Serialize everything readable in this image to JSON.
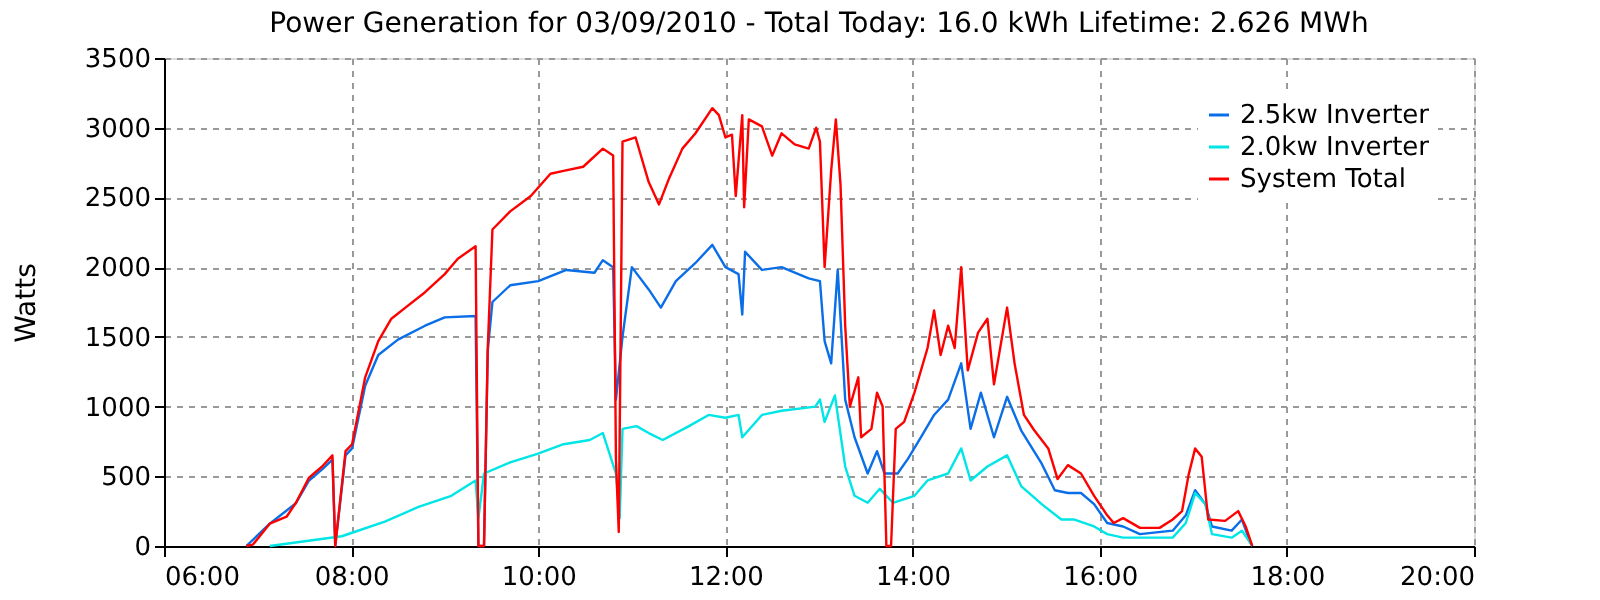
{
  "chart_data": {
    "type": "line",
    "title": "Power Generation for 03/09/2010 - Total Today: 16.0 kWh   Lifetime: 2.626 MWh",
    "ylabel": "Watts",
    "xlim": [
      6,
      20
    ],
    "xticks": [
      {
        "value": 6,
        "label": "06:00"
      },
      {
        "value": 8,
        "label": "08:00"
      },
      {
        "value": 10,
        "label": "10:00"
      },
      {
        "value": 12,
        "label": "12:00"
      },
      {
        "value": 14,
        "label": "14:00"
      },
      {
        "value": 16,
        "label": "16:00"
      },
      {
        "value": 18,
        "label": "18:00"
      },
      {
        "value": 20,
        "label": "20:00"
      }
    ],
    "ylim": [
      0,
      3500
    ],
    "yticks": [
      0,
      500,
      1000,
      1500,
      2000,
      2500,
      3000,
      3500
    ],
    "grid": true,
    "legend": "top right",
    "line_style": "solid",
    "marker": "none",
    "series": [
      {
        "name": "2.5kw Inverter",
        "color": "#0a6ee8",
        "x": [
          6.88,
          7.13,
          7.41,
          7.55,
          7.69,
          7.8,
          7.83,
          7.94,
          8.01,
          8.15,
          8.29,
          8.5,
          8.79,
          9.0,
          9.33,
          9.36,
          9.42,
          9.46,
          9.51,
          9.7,
          10.0,
          10.3,
          10.6,
          10.69,
          10.8,
          10.83,
          10.9,
          11.0,
          11.18,
          11.31,
          11.47,
          11.68,
          11.86,
          12.0,
          12.14,
          12.18,
          12.21,
          12.39,
          12.6,
          12.89,
          13.01,
          13.06,
          13.13,
          13.2,
          13.28,
          13.38,
          13.52,
          13.62,
          13.7,
          13.84,
          13.95,
          14.09,
          14.23,
          14.38,
          14.52,
          14.62,
          14.73,
          14.87,
          15.01,
          15.16,
          15.38,
          15.52,
          15.66,
          15.8,
          15.94,
          16.08,
          16.25,
          16.43,
          16.78,
          16.92,
          17.02,
          17.13,
          17.2,
          17.41,
          17.52,
          17.59,
          17.63
        ],
        "values": [
          0,
          160,
          307,
          470,
          550,
          620,
          0,
          650,
          700,
          1150,
          1370,
          1480,
          1580,
          1640,
          1650,
          0,
          0,
          1400,
          1750,
          1870,
          1900,
          1980,
          1960,
          2050,
          2000,
          1050,
          1500,
          2000,
          1840,
          1710,
          1900,
          2030,
          2160,
          2000,
          1950,
          1660,
          2110,
          1980,
          2000,
          1920,
          1900,
          1470,
          1310,
          1980,
          1050,
          780,
          520,
          680,
          520,
          520,
          625,
          780,
          940,
          1050,
          1310,
          840,
          1100,
          780,
          1070,
          830,
          590,
          400,
          380,
          380,
          300,
          165,
          140,
          85,
          110,
          220,
          400,
          300,
          140,
          110,
          190,
          60,
          0
        ]
      },
      {
        "name": "2.0kw Inverter",
        "color": "#00e5e5",
        "x": [
          7.13,
          7.9,
          8.01,
          8.36,
          8.72,
          9.07,
          9.33,
          9.36,
          9.42,
          9.7,
          9.99,
          10.27,
          10.55,
          10.69,
          10.83,
          10.87,
          10.9,
          11.05,
          11.18,
          11.33,
          11.61,
          11.82,
          12.0,
          12.14,
          12.18,
          12.39,
          12.6,
          12.96,
          13.01,
          13.06,
          13.17,
          13.28,
          13.38,
          13.52,
          13.65,
          13.79,
          14.02,
          14.16,
          14.38,
          14.52,
          14.62,
          14.8,
          15.01,
          15.16,
          15.38,
          15.59,
          15.73,
          15.94,
          16.08,
          16.25,
          16.78,
          16.92,
          17.02,
          17.13,
          17.2,
          17.41,
          17.52,
          17.59,
          17.63
        ],
        "values": [
          0,
          70,
          95,
          175,
          280,
          360,
          470,
          200,
          520,
          600,
          660,
          730,
          760,
          810,
          520,
          200,
          840,
          860,
          810,
          760,
          860,
          940,
          920,
          940,
          780,
          940,
          970,
          1000,
          1050,
          890,
          1080,
          570,
          360,
          310,
          410,
          310,
          360,
          470,
          520,
          700,
          470,
          570,
          650,
          430,
          300,
          190,
          190,
          140,
          85,
          60,
          60,
          165,
          380,
          300,
          85,
          60,
          110,
          40,
          0
        ]
      },
      {
        "name": "System Total",
        "color": "#ff0000",
        "x": [
          6.88,
          6.95,
          7.13,
          7.31,
          7.41,
          7.55,
          7.69,
          7.8,
          7.83,
          7.94,
          8.01,
          8.15,
          8.29,
          8.43,
          8.58,
          8.79,
          9.0,
          9.14,
          9.33,
          9.36,
          9.42,
          9.46,
          9.51,
          9.7,
          9.92,
          10.13,
          10.27,
          10.48,
          10.69,
          10.8,
          10.83,
          10.86,
          10.9,
          11.04,
          11.18,
          11.29,
          11.4,
          11.54,
          11.68,
          11.86,
          11.93,
          12.0,
          12.07,
          12.11,
          12.18,
          12.2,
          12.25,
          12.39,
          12.5,
          12.6,
          12.74,
          12.89,
          12.97,
          13.01,
          13.06,
          13.13,
          13.18,
          13.23,
          13.28,
          13.33,
          13.42,
          13.45,
          13.56,
          13.62,
          13.68,
          13.72,
          13.77,
          13.82,
          13.91,
          14.02,
          14.16,
          14.23,
          14.3,
          14.38,
          14.45,
          14.52,
          14.59,
          14.7,
          14.8,
          14.87,
          15.01,
          15.09,
          15.19,
          15.3,
          15.45,
          15.55,
          15.66,
          15.8,
          15.94,
          16.08,
          16.15,
          16.25,
          16.43,
          16.64,
          16.78,
          16.88,
          16.95,
          17.02,
          17.09,
          17.16,
          17.34,
          17.48,
          17.56,
          17.63
        ],
        "values": [
          0,
          10,
          160,
          210,
          310,
          490,
          570,
          650,
          0,
          680,
          730,
          1210,
          1470,
          1630,
          1710,
          1820,
          1950,
          2060,
          2150,
          0,
          0,
          1420,
          2270,
          2400,
          2510,
          2670,
          2690,
          2720,
          2850,
          2800,
          620,
          100,
          2900,
          2930,
          2610,
          2450,
          2640,
          2850,
          2960,
          3140,
          3090,
          2930,
          2950,
          2510,
          3090,
          2430,
          3060,
          3010,
          2800,
          2960,
          2880,
          2850,
          3000,
          2900,
          2000,
          2690,
          3060,
          2590,
          1580,
          1000,
          1210,
          780,
          840,
          1100,
          1000,
          0,
          0,
          840,
          890,
          1100,
          1420,
          1690,
          1370,
          1580,
          1420,
          2000,
          1260,
          1530,
          1630,
          1160,
          1710,
          1310,
          940,
          830,
          700,
          480,
          580,
          520,
          360,
          220,
          165,
          200,
          130,
          130,
          190,
          250,
          510,
          700,
          640,
          190,
          180,
          250,
          140,
          0
        ]
      }
    ]
  }
}
